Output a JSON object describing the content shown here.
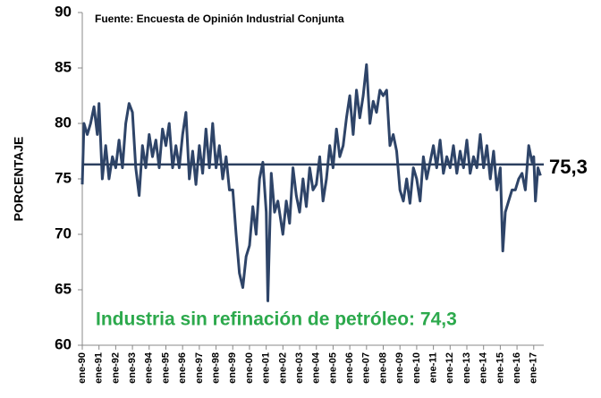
{
  "chart_data": {
    "type": "line",
    "source": "Fuente: Encuesta de Opinión Industrial Conjunta",
    "y_label": "PORCENTAJE",
    "annotation": "Industria sin refinación de petróleo: 74,3",
    "end_label": "75,3",
    "hline": 76.3,
    "color": "#2e4468",
    "hline_color": "#2b3f5f",
    "xlim": [
      1990,
      2017.6
    ],
    "ylim": [
      60,
      90
    ],
    "yticks": [
      60,
      65,
      70,
      75,
      80,
      85,
      90
    ],
    "xticks": [
      {
        "value": 1990,
        "label": "ene-90"
      },
      {
        "value": 1991,
        "label": "ene-91"
      },
      {
        "value": 1992,
        "label": "ene-92"
      },
      {
        "value": 1993,
        "label": "ene-93"
      },
      {
        "value": 1994,
        "label": "ene-94"
      },
      {
        "value": 1995,
        "label": "ene-95"
      },
      {
        "value": 1996,
        "label": "ene-96"
      },
      {
        "value": 1997,
        "label": "ene-97"
      },
      {
        "value": 1998,
        "label": "ene-98"
      },
      {
        "value": 1999,
        "label": "ene-99"
      },
      {
        "value": 2000,
        "label": "ene-00"
      },
      {
        "value": 2001,
        "label": "ene-01"
      },
      {
        "value": 2002,
        "label": "ene-02"
      },
      {
        "value": 2003,
        "label": "ene-03"
      },
      {
        "value": 2004,
        "label": "ene-04"
      },
      {
        "value": 2005,
        "label": "ene-05"
      },
      {
        "value": 2006,
        "label": "ene-06"
      },
      {
        "value": 2007,
        "label": "ene-07"
      },
      {
        "value": 2008,
        "label": "ene-08"
      },
      {
        "value": 2009,
        "label": "ene-09"
      },
      {
        "value": 2010,
        "label": "ene-10"
      },
      {
        "value": 2011,
        "label": "ene-11"
      },
      {
        "value": 2012,
        "label": "ene-12"
      },
      {
        "value": 2013,
        "label": "ene-13"
      },
      {
        "value": 2014,
        "label": "ene-14"
      },
      {
        "value": 2015,
        "label": "ene-15"
      },
      {
        "value": 2016,
        "label": "ene-16"
      },
      {
        "value": 2017,
        "label": "ene-17"
      }
    ],
    "x": [
      1990.0,
      1990.1,
      1990.3,
      1990.5,
      1990.7,
      1990.9,
      1991.0,
      1991.2,
      1991.4,
      1991.6,
      1991.8,
      1992.0,
      1992.2,
      1992.4,
      1992.6,
      1992.8,
      1993.0,
      1993.2,
      1993.4,
      1993.6,
      1993.8,
      1994.0,
      1994.2,
      1994.4,
      1994.6,
      1994.8,
      1995.0,
      1995.2,
      1995.4,
      1995.6,
      1995.8,
      1996.0,
      1996.2,
      1996.4,
      1996.6,
      1996.8,
      1997.0,
      1997.2,
      1997.4,
      1997.6,
      1997.8,
      1998.0,
      1998.2,
      1998.4,
      1998.6,
      1998.8,
      1999.0,
      1999.2,
      1999.4,
      1999.6,
      1999.8,
      2000.0,
      2000.2,
      2000.4,
      2000.6,
      2000.8,
      2001.0,
      2001.1,
      2001.3,
      2001.5,
      2001.7,
      2002.0,
      2002.2,
      2002.4,
      2002.6,
      2002.8,
      2003.0,
      2003.2,
      2003.4,
      2003.6,
      2003.8,
      2004.0,
      2004.2,
      2004.4,
      2004.6,
      2004.8,
      2005.0,
      2005.2,
      2005.4,
      2005.6,
      2005.8,
      2006.0,
      2006.2,
      2006.4,
      2006.6,
      2006.8,
      2007.0,
      2007.2,
      2007.4,
      2007.6,
      2007.8,
      2008.0,
      2008.2,
      2008.4,
      2008.6,
      2008.8,
      2009.0,
      2009.2,
      2009.4,
      2009.6,
      2009.8,
      2010.0,
      2010.2,
      2010.4,
      2010.6,
      2010.8,
      2011.0,
      2011.2,
      2011.4,
      2011.6,
      2011.8,
      2012.0,
      2012.2,
      2012.4,
      2012.6,
      2012.8,
      2013.0,
      2013.2,
      2013.4,
      2013.6,
      2013.8,
      2014.0,
      2014.2,
      2014.4,
      2014.6,
      2014.8,
      2015.0,
      2015.15,
      2015.3,
      2015.5,
      2015.7,
      2015.9,
      2016.1,
      2016.3,
      2016.5,
      2016.7,
      2016.9,
      2017.0,
      2017.1,
      2017.25,
      2017.4
    ],
    "values": [
      74.5,
      80,
      79,
      80,
      81.5,
      79,
      81.8,
      75,
      78,
      75,
      77,
      76,
      78.5,
      76,
      80,
      81.8,
      81,
      76,
      73.5,
      78,
      76,
      79,
      77,
      78.5,
      76,
      79.5,
      78,
      80,
      76,
      78,
      76,
      79,
      81,
      75,
      77.5,
      74.5,
      78,
      75.5,
      79.5,
      76,
      80,
      76,
      78,
      75,
      77,
      74,
      74,
      70,
      66.5,
      65.2,
      68,
      69,
      72.5,
      70,
      75,
      76.5,
      72,
      64,
      75.5,
      72,
      73,
      70,
      73,
      71,
      76,
      73.5,
      72,
      75,
      72.5,
      76,
      74,
      74.5,
      77,
      73,
      75,
      78,
      76,
      79.5,
      77,
      78,
      80.5,
      82.5,
      79,
      83,
      80.5,
      82.5,
      85.3,
      80,
      82,
      81,
      83,
      82.5,
      83,
      78,
      79,
      77.5,
      74,
      73,
      75,
      72.8,
      76,
      75,
      73,
      77,
      75,
      76.5,
      78,
      76,
      78.5,
      75.5,
      77,
      76,
      78,
      75.5,
      77.5,
      76,
      78.5,
      75.5,
      77,
      76,
      79,
      76,
      78,
      75,
      77.5,
      74,
      76,
      68.5,
      72,
      73,
      74,
      74,
      75,
      75.5,
      74,
      78,
      76.5,
      77,
      73,
      76,
      75.3
    ]
  }
}
